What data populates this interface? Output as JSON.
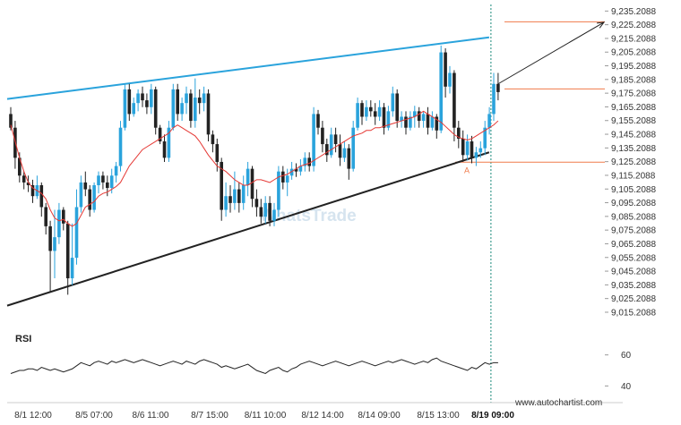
{
  "chart_data": {
    "type": "candlestick",
    "y_ticks": [
      "9,235.2088",
      "9,225.2088",
      "9,215.2088",
      "9,205.2088",
      "9,195.2088",
      "9,185.2088",
      "9,175.2088",
      "9,165.2088",
      "9,155.2088",
      "9,145.2088",
      "9,135.2088",
      "9,125.2088",
      "9,115.2088",
      "9,105.2088",
      "9,095.2088",
      "9,085.2088",
      "9,075.2088",
      "9,065.2088",
      "9,055.2088",
      "9,045.2088",
      "9,035.2088",
      "9,025.2088",
      "9,015.2088"
    ],
    "y_tick_values": [
      9235.2088,
      9225.2088,
      9215.2088,
      9205.2088,
      9195.2088,
      9185.2088,
      9175.2088,
      9165.2088,
      9155.2088,
      9145.2088,
      9135.2088,
      9125.2088,
      9115.2088,
      9105.2088,
      9095.2088,
      9085.2088,
      9075.2088,
      9065.2088,
      9055.2088,
      9045.2088,
      9035.2088,
      9025.2088,
      9015.2088
    ],
    "ylim": [
      9008,
      9240
    ],
    "x_labels": [
      "8/1 12:00",
      "8/5 07:00",
      "8/6 11:00",
      "8/7 15:00",
      "8/11 10:00",
      "8/12 14:00",
      "8/14 09:00",
      "8/15 13:00",
      "8/19 09:00"
    ],
    "candle_count": 112,
    "candles": [
      [
        9160,
        9150,
        9148,
        9165
      ],
      [
        9150,
        9128,
        9120,
        9155
      ],
      [
        9128,
        9115,
        9110,
        9132
      ],
      [
        9115,
        9110,
        9105,
        9118
      ],
      [
        9110,
        9108,
        9103,
        9115
      ],
      [
        9108,
        9100,
        9095,
        9112
      ],
      [
        9100,
        9108,
        9098,
        9115
      ],
      [
        9108,
        9092,
        9085,
        9110
      ],
      [
        9092,
        9078,
        9072,
        9095
      ],
      [
        9078,
        9060,
        9030,
        9082
      ],
      [
        9060,
        9070,
        9040,
        9090
      ],
      [
        9070,
        9090,
        9065,
        9095
      ],
      [
        9090,
        9080,
        9075,
        9092
      ],
      [
        9080,
        9040,
        9028,
        9082
      ],
      [
        9040,
        9055,
        9035,
        9080
      ],
      [
        9055,
        9092,
        9050,
        9105
      ],
      [
        9092,
        9110,
        9088,
        9115
      ],
      [
        9110,
        9105,
        9100,
        9118
      ],
      [
        9105,
        9090,
        9085,
        9108
      ],
      [
        9090,
        9108,
        9088,
        9110
      ],
      [
        9108,
        9115,
        9102,
        9118
      ],
      [
        9115,
        9110,
        9105,
        9118
      ],
      [
        9110,
        9106,
        9100,
        9115
      ],
      [
        9106,
        9115,
        9102,
        9120
      ],
      [
        9115,
        9122,
        9110,
        9125
      ],
      [
        9122,
        9150,
        9118,
        9155
      ],
      [
        9150,
        9178,
        9148,
        9182
      ],
      [
        9178,
        9160,
        9155,
        9182
      ],
      [
        9160,
        9168,
        9158,
        9172
      ],
      [
        9168,
        9175,
        9162,
        9178
      ],
      [
        9175,
        9170,
        9165,
        9180
      ],
      [
        9170,
        9165,
        9160,
        9175
      ],
      [
        9165,
        9178,
        9160,
        9182
      ],
      [
        9178,
        9150,
        9145,
        9180
      ],
      [
        9150,
        9140,
        9138,
        9152
      ],
      [
        9140,
        9128,
        9125,
        9145
      ],
      [
        9128,
        9150,
        9125,
        9155
      ],
      [
        9150,
        9178,
        9148,
        9182
      ],
      [
        9178,
        9160,
        9155,
        9182
      ],
      [
        9160,
        9168,
        9155,
        9172
      ],
      [
        9168,
        9175,
        9160,
        9180
      ],
      [
        9175,
        9155,
        9150,
        9178
      ],
      [
        9155,
        9172,
        9150,
        9186
      ],
      [
        9172,
        9168,
        9160,
        9178
      ],
      [
        9168,
        9175,
        9162,
        9180
      ],
      [
        9175,
        9145,
        9140,
        9178
      ],
      [
        9145,
        9138,
        9132,
        9148
      ],
      [
        9138,
        9125,
        9118,
        9142
      ],
      [
        9125,
        9090,
        9082,
        9128
      ],
      [
        9090,
        9100,
        9085,
        9110
      ],
      [
        9100,
        9095,
        9088,
        9108
      ],
      [
        9095,
        9105,
        9090,
        9118
      ],
      [
        9105,
        9095,
        9088,
        9110
      ],
      [
        9095,
        9108,
        9090,
        9115
      ],
      [
        9108,
        9120,
        9100,
        9125
      ],
      [
        9120,
        9098,
        9092,
        9122
      ],
      [
        9098,
        9092,
        9085,
        9105
      ],
      [
        9092,
        9085,
        9080,
        9098
      ],
      [
        9085,
        9095,
        9080,
        9100
      ],
      [
        9095,
        9082,
        9078,
        9100
      ],
      [
        9082,
        9090,
        9078,
        9095
      ],
      [
        9090,
        9118,
        9085,
        9122
      ],
      [
        9118,
        9110,
        9105,
        9122
      ],
      [
        9110,
        9115,
        9100,
        9120
      ],
      [
        9115,
        9120,
        9112,
        9125
      ],
      [
        9120,
        9118,
        9114,
        9124
      ],
      [
        9118,
        9122,
        9115,
        9127
      ],
      [
        9122,
        9128,
        9118,
        9132
      ],
      [
        9128,
        9122,
        9118,
        9132
      ],
      [
        9122,
        9160,
        9118,
        9165
      ],
      [
        9160,
        9150,
        9145,
        9163
      ],
      [
        9150,
        9138,
        9132,
        9155
      ],
      [
        9138,
        9130,
        9125,
        9142
      ],
      [
        9130,
        9145,
        9128,
        9150
      ],
      [
        9145,
        9138,
        9132,
        9150
      ],
      [
        9138,
        9128,
        9122,
        9145
      ],
      [
        9128,
        9135,
        9125,
        9140
      ],
      [
        9135,
        9120,
        9112,
        9138
      ],
      [
        9120,
        9150,
        9118,
        9155
      ],
      [
        9150,
        9168,
        9148,
        9172
      ],
      [
        9168,
        9158,
        9152,
        9170
      ],
      [
        9158,
        9165,
        9155,
        9170
      ],
      [
        9165,
        9162,
        9158,
        9170
      ],
      [
        9162,
        9158,
        9152,
        9168
      ],
      [
        9158,
        9165,
        9155,
        9170
      ],
      [
        9165,
        9150,
        9145,
        9168
      ],
      [
        9150,
        9162,
        9148,
        9166
      ],
      [
        9162,
        9175,
        9158,
        9180
      ],
      [
        9175,
        9155,
        9150,
        9178
      ],
      [
        9155,
        9158,
        9150,
        9162
      ],
      [
        9158,
        9150,
        9145,
        9162
      ],
      [
        9150,
        9158,
        9148,
        9162
      ],
      [
        9158,
        9162,
        9150,
        9166
      ],
      [
        9162,
        9155,
        9150,
        9165
      ],
      [
        9155,
        9160,
        9150,
        9162
      ],
      [
        9160,
        9150,
        9145,
        9165
      ],
      [
        9150,
        9158,
        9148,
        9162
      ],
      [
        9158,
        9148,
        9142,
        9160
      ],
      [
        9148,
        9205,
        9146,
        9210
      ],
      [
        9205,
        9180,
        9172,
        9208
      ],
      [
        9180,
        9190,
        9175,
        9195
      ],
      [
        9190,
        9150,
        9140,
        9192
      ],
      [
        9150,
        9142,
        9135,
        9155
      ],
      [
        9142,
        9130,
        9125,
        9148
      ],
      [
        9130,
        9140,
        9126,
        9145
      ],
      [
        9140,
        9128,
        9124,
        9144
      ],
      [
        9128,
        9132,
        9122,
        9136
      ],
      [
        9132,
        9135,
        9128,
        9140
      ],
      [
        9135,
        9150,
        9130,
        9155
      ],
      [
        9150,
        9160,
        9145,
        9165
      ],
      [
        9160,
        9182,
        9155,
        9190
      ],
      [
        9182,
        9176,
        9170,
        9190
      ]
    ],
    "ma": [
      9152,
      9140,
      9128,
      9118,
      9110,
      9106,
      9104,
      9102,
      9098,
      9090,
      9084,
      9082,
      9083,
      9080,
      9078,
      9080,
      9086,
      9092,
      9094,
      9096,
      9100,
      9102,
      9103,
      9105,
      9107,
      9110,
      9116,
      9122,
      9126,
      9130,
      9134,
      9136,
      9138,
      9140,
      9142,
      9144,
      9146,
      9150,
      9152,
      9150,
      9148,
      9146,
      9144,
      9140,
      9135,
      9130,
      9126,
      9122,
      9120,
      9118,
      9115,
      9112,
      9110,
      9108,
      9108,
      9110,
      9112,
      9112,
      9111,
      9110,
      9112,
      9114,
      9115,
      9116,
      9118,
      9120,
      9122,
      9123,
      9124,
      9126,
      9128,
      9130,
      9132,
      9134,
      9136,
      9138,
      9140,
      9142,
      9144,
      9145,
      9146,
      9148,
      9148,
      9150,
      9150,
      9151,
      9152,
      9153,
      9154,
      9155,
      9156,
      9157,
      9158,
      9160,
      9162,
      9160,
      9158,
      9156,
      9154,
      9151,
      9148,
      9145,
      9143,
      9142,
      9141,
      9142,
      9144,
      9146,
      9148,
      9150,
      9152,
      9155
    ],
    "channel_upper": {
      "from": [
        0,
        9171
      ],
      "to": [
        111,
        9216
      ]
    },
    "channel_lower": {
      "from": [
        0,
        9020
      ],
      "to": [
        111,
        9132
      ]
    },
    "forecast_arrow": {
      "from": [
        111,
        9182
      ],
      "to": [
        130,
        9227
      ]
    },
    "target_line": 9227.3,
    "current_line": 9178.3,
    "support_line": 9124.8,
    "pattern_point_label": "A",
    "rsi": {
      "title": "RSI",
      "levels": [
        "60",
        "40"
      ],
      "level_values": [
        60,
        40
      ],
      "ylim": [
        35,
        65
      ],
      "values": [
        48,
        49,
        50,
        50,
        51,
        51,
        50,
        52,
        51,
        50,
        51,
        50,
        49,
        50,
        51,
        53,
        55,
        54,
        53,
        55,
        56,
        55,
        54,
        56,
        55,
        56,
        57,
        56,
        55,
        56,
        57,
        56,
        55,
        54,
        53,
        54,
        55,
        56,
        55,
        54,
        56,
        55,
        54,
        56,
        57,
        56,
        55,
        54,
        52,
        53,
        52,
        51,
        52,
        53,
        54,
        52,
        50,
        49,
        48,
        50,
        51,
        52,
        50,
        49,
        51,
        52,
        54,
        55,
        56,
        55,
        54,
        53,
        54,
        55,
        56,
        55,
        54,
        53,
        54,
        55,
        56,
        55,
        54,
        53,
        54,
        55,
        56,
        55,
        56,
        57,
        56,
        55,
        54,
        55,
        56,
        55,
        57,
        58,
        56,
        55,
        54,
        53,
        52,
        51,
        50,
        52,
        51,
        53,
        55,
        54,
        55,
        55
      ]
    }
  },
  "watermark": {
    "text": "WhatsTrade"
  },
  "footer": {
    "url": "www.autochartist.com"
  },
  "colors": {
    "bull": "#2aa3dc",
    "bear": "#222222",
    "ma": "#e53935",
    "channel_upper": "#2aa3dc",
    "channel_lower": "#222222",
    "target": "#f07a4a",
    "arrow": "#222222",
    "vline": "#1a8a7a",
    "rsi": "#222222"
  }
}
